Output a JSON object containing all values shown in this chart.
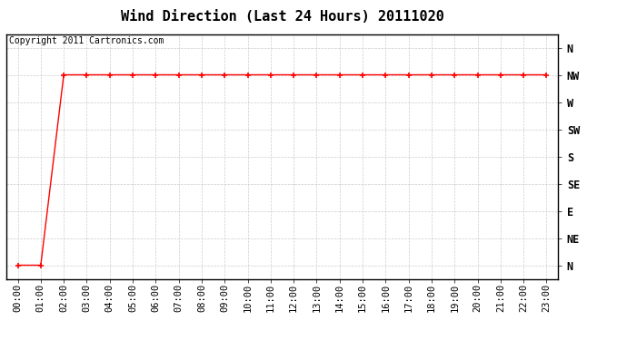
{
  "title": "Wind Direction (Last 24 Hours) 20111020",
  "copyright_text": "Copyright 2011 Cartronics.com",
  "background_color": "#ffffff",
  "line_color": "#ff0000",
  "grid_color": "#cccccc",
  "border_color": "#000000",
  "x_labels": [
    "00:00",
    "01:00",
    "02:00",
    "03:00",
    "04:00",
    "05:00",
    "06:00",
    "07:00",
    "08:00",
    "09:00",
    "10:00",
    "11:00",
    "12:00",
    "13:00",
    "14:00",
    "15:00",
    "16:00",
    "17:00",
    "18:00",
    "19:00",
    "20:00",
    "21:00",
    "22:00",
    "23:00"
  ],
  "y_labels": [
    "N",
    "NE",
    "E",
    "SE",
    "S",
    "SW",
    "W",
    "NW",
    "N"
  ],
  "y_values": [
    0,
    1,
    2,
    3,
    4,
    5,
    6,
    7,
    8
  ],
  "x_data": [
    0,
    1,
    2,
    3,
    4,
    5,
    6,
    7,
    8,
    9,
    10,
    11,
    12,
    13,
    14,
    15,
    16,
    17,
    18,
    19,
    20,
    21,
    22,
    23
  ],
  "y_data": [
    0,
    0,
    7,
    7,
    7,
    7,
    7,
    7,
    7,
    7,
    7,
    7,
    7,
    7,
    7,
    7,
    7,
    7,
    7,
    7,
    7,
    7,
    7,
    7
  ],
  "title_fontsize": 11,
  "tick_fontsize": 7.5,
  "copyright_fontsize": 7,
  "fig_width": 6.9,
  "fig_height": 3.75,
  "dpi": 100
}
